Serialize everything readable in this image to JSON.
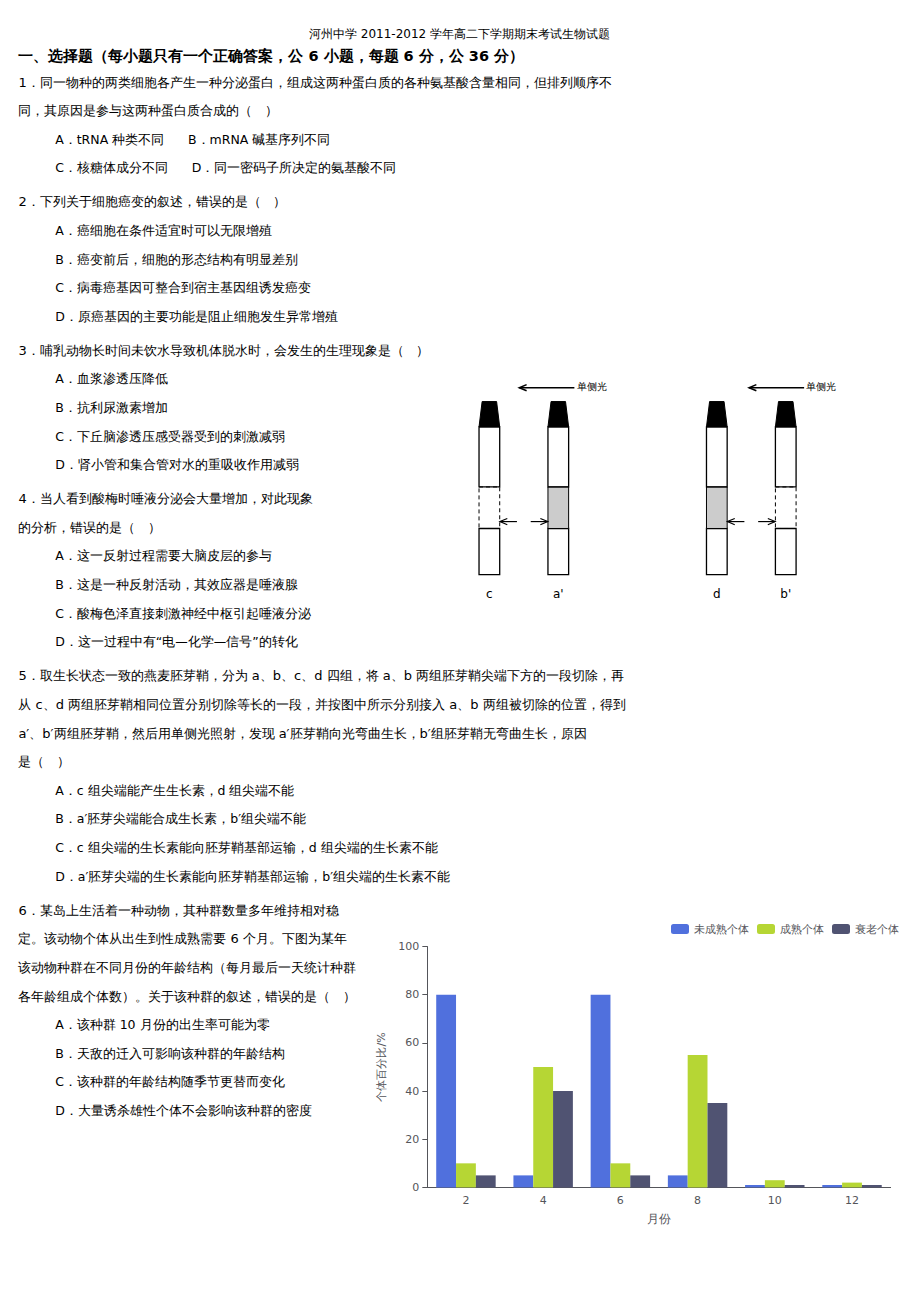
{
  "chart_data": {
    "type": "bar",
    "title": "河州中学 2011-2012 学年高二下学期期末考试生物试题",
    "subtitle": "一、选择题（每小题只有一个正确答案，公 6 小题，每题 6 分，公 36 分）",
    "annotations": {
      "questions": [
        [
          "1．同一物种的两类细胞各产生一种分泌蛋白，组成这两种蛋白质的各种氨基酸含量相同，但排列顺序不",
          "同，其原因是参与这两种蛋白质合成的（   ）",
          "A．tRNA 种类不同      B．mRNA 碱基序列不同",
          "C．核糖体成分不同      D．同一密码子所决定的氨基酸不同"
        ],
        [
          "2．下列关于细胞癌变的叙述，错误的是（   ）",
          "A．癌细胞在条件适宜时可以无限增殖",
          "B．癌变前后，细胞的形态结构有明显差别",
          "C．病毒癌基因可整合到宿主基因组诱发癌变",
          "D．原癌基因的主要功能是阻止细胞发生异常增殖"
        ],
        [
          "3．哺乳动物长时间未饮水导致机体脱水时，会发生的生理现象是（   ）",
          "A．血浆渗透压降低",
          "B．抗利尿激素增加",
          "C．下丘脑渗透压感受器受到的刺激减弱",
          "D．肾小管和集合管对水的重吸收作用减弱"
        ],
        [
          "4．当人看到酸梅时唾液分泌会大量增加，对此现象",
          "的分析，错误的是（   ）",
          "A．这一反射过程需要大脑皮层的参与",
          "B．这是一种反射活动，其效应器是唾液腺",
          "C．酸梅色泽直接刺激神经中枢引起唾液分泌",
          "D．这一过程中有“电—化学—信号”的转化"
        ],
        [
          "5．取生长状态一致的燕麦胚芽鞘，分为 a、b、c、d 四组，将 a、b 两组胚芽鞘尖端下方的一段切除，再",
          "从 c、d 两组胚芽鞘相同位置分别切除等长的一段，并按图中所示分别接入 a、b 两组被切除的位置，得到",
          "a′、b′两组胚芽鞘，然后用单侧光照射，发现 a′胚芽鞘向光弯曲生长，b′组胚芽鞘无弯曲生长，原因",
          "是（   ）",
          "A．c 组尖端能产生生长素，d 组尖端不能",
          "B．a′胚芽尖端能合成生长素，b′组尖端不能",
          "C．c 组尖端的生长素能向胚芽鞘基部运输，d 组尖端的生长素不能",
          "D．a′胚芽尖端的生长素能向胚芽鞘基部运输，b′组尖端的生长素不能"
        ],
        [
          "6．某岛上生活着一种动物，其种群数量多年维持相对稳",
          "定。该动物个体从出生到性成熟需要 6 个月。下图为某年",
          "该动物种群在不同月份的年龄结构（每月最后一天统计种群",
          "各年龄组成个体数）。关于该种群的叙述，错误的是（   ）",
          "A．该种群 10 月份的出生率可能为零",
          "B．天敌的迁入可影响该种群的年龄结构",
          "C．该种群的年龄结构随季节更替而变化",
          "D．大量诱杀雄性个体不会影响该种群的密度"
        ]
      ],
      "diagram_labels": [
        "c",
        "a'",
        "d",
        "b'"
      ],
      "light_label": "单侧光"
    },
    "xlabel": "月份",
    "ylabel": "个体百分比/%",
    "categories": [
      "2",
      "4",
      "6",
      "8",
      "10",
      "12"
    ],
    "series": [
      {
        "name": "未成熟个体",
        "values": [
          80,
          5,
          80,
          5,
          1,
          1
        ]
      },
      {
        "name": "成熟个体",
        "values": [
          10,
          50,
          10,
          55,
          3,
          2
        ]
      },
      {
        "name": "衰老个体",
        "values": [
          5,
          40,
          5,
          35,
          1,
          1
        ]
      }
    ],
    "ylim": [
      0,
      100
    ],
    "yticks": [
      0,
      20,
      40,
      60,
      80,
      100
    ],
    "grid": false,
    "legend": "upper right"
  }
}
